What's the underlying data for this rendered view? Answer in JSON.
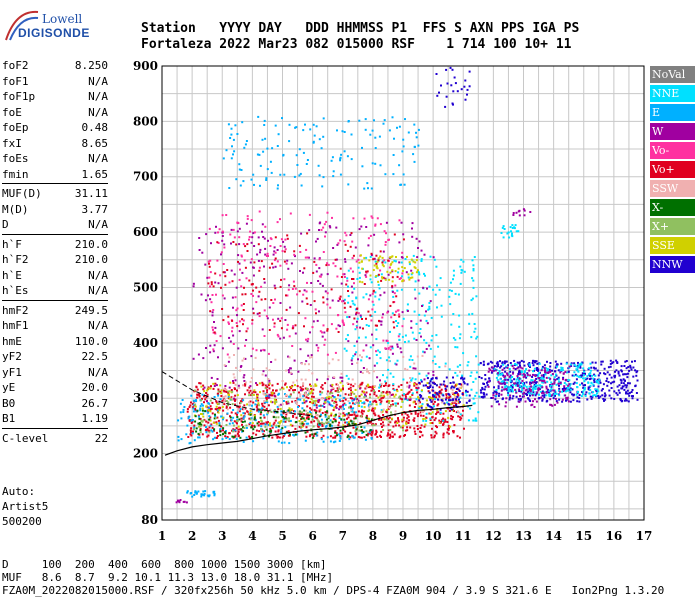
{
  "logo": {
    "line1": "Lowell",
    "line2": "DIGISONDE"
  },
  "header": {
    "line1": "Station   YYYY DAY   DDD HHMMSS P1  FFS S AXN PPS IGA PS",
    "line2": "Fortaleza 2022 Mar23 082 015000 RSF    1 714 100 10+ 11"
  },
  "params": {
    "group1": [
      {
        "label": "foF2",
        "value": "8.250"
      },
      {
        "label": "foF1",
        "value": "N/A"
      },
      {
        "label": "foF1p",
        "value": "N/A"
      },
      {
        "label": "foE",
        "value": "N/A"
      },
      {
        "label": "foEp",
        "value": "0.48"
      },
      {
        "label": "fxI",
        "value": "8.65"
      },
      {
        "label": "foEs",
        "value": "N/A"
      },
      {
        "label": "fmin",
        "value": "1.65"
      }
    ],
    "group2": [
      {
        "label": "MUF(D)",
        "value": "31.11"
      },
      {
        "label": "M(D)",
        "value": "3.77"
      },
      {
        "label": "D",
        "value": "N/A"
      }
    ],
    "group3": [
      {
        "label": "h`F",
        "value": "210.0"
      },
      {
        "label": "h`F2",
        "value": "210.0"
      },
      {
        "label": "h`E",
        "value": "N/A"
      },
      {
        "label": "h`Es",
        "value": "N/A"
      }
    ],
    "group4": [
      {
        "label": "hmF2",
        "value": "249.5"
      },
      {
        "label": "hmF1",
        "value": "N/A"
      },
      {
        "label": "hmE",
        "value": "110.0"
      },
      {
        "label": "yF2",
        "value": "22.5"
      },
      {
        "label": "yF1",
        "value": "N/A"
      },
      {
        "label": "yE",
        "value": "20.0"
      },
      {
        "label": "B0",
        "value": "26.7"
      },
      {
        "label": "B1",
        "value": "1.19"
      }
    ],
    "group5": [
      {
        "label": "C-level",
        "value": "22"
      }
    ]
  },
  "auto": {
    "line1": "Auto:",
    "line2": "Artist5",
    "line3": "500200"
  },
  "bottom": {
    "line1": "D     100  200  400  600  800 1000 1500 3000 [km]",
    "line2": "MUF   8.6  8.7  9.2 10.1 11.3 13.0 18.0 31.1 [MHz]",
    "line3": "FZA0M_2022082015000.RSF / 320fx256h 50 kHz 5.0 km / DPS-4 FZA0M 904 / 3.9 S 321.6 E   Ion2Png 1.3.20"
  },
  "legend": [
    {
      "label": "NoVal",
      "color": "#808080"
    },
    {
      "label": "NNE",
      "color": "#00e0ff"
    },
    {
      "label": "E",
      "color": "#00b0ff"
    },
    {
      "label": "W",
      "color": "#a000a0"
    },
    {
      "label": "Vo-",
      "color": "#ff30a0"
    },
    {
      "label": "Vo+",
      "color": "#e00020"
    },
    {
      "label": "SSW",
      "color": "#f0b0b0"
    },
    {
      "label": "X-",
      "color": "#007000"
    },
    {
      "label": "X+",
      "color": "#90c060"
    },
    {
      "label": "SSE",
      "color": "#d0d000"
    },
    {
      "label": "NNW",
      "color": "#2000d0"
    }
  ],
  "chart_data": {
    "type": "scatter",
    "xlim": [
      1,
      17
    ],
    "ylim": [
      80,
      900
    ],
    "x_ticks": [
      1,
      2,
      3,
      4,
      5,
      6,
      7,
      8,
      9,
      10,
      11,
      12,
      13,
      14,
      15,
      16,
      17
    ],
    "y_ticks": [
      80,
      200,
      300,
      400,
      500,
      600,
      700,
      800,
      900
    ],
    "grid": true,
    "legend_placement": "right",
    "trace": [
      [
        1.1,
        197
      ],
      [
        1.5,
        205
      ],
      [
        2,
        212
      ],
      [
        2.5,
        216
      ],
      [
        3,
        219
      ],
      [
        3.5,
        222
      ],
      [
        4,
        227
      ],
      [
        4.5,
        232
      ],
      [
        5,
        236
      ],
      [
        5.5,
        240
      ],
      [
        6,
        243
      ],
      [
        6.5,
        245
      ],
      [
        7,
        248
      ],
      [
        7.5,
        252
      ],
      [
        8,
        260
      ],
      [
        8.5,
        268
      ],
      [
        9,
        274
      ],
      [
        9.5,
        278
      ],
      [
        10,
        280
      ],
      [
        10.5,
        283
      ],
      [
        11,
        285
      ],
      [
        11.3,
        287
      ]
    ],
    "trace_dashed": [
      [
        1,
        348
      ],
      [
        2,
        315
      ],
      [
        3,
        292
      ],
      [
        4,
        280
      ],
      [
        5,
        275
      ],
      [
        6,
        268
      ]
    ],
    "clusters": [
      {
        "color": "#e00020",
        "x": [
          1.8,
          11
        ],
        "y": [
          230,
          330
        ],
        "n": 900
      },
      {
        "color": "#00b0ff",
        "x": [
          1.5,
          8
        ],
        "y": [
          220,
          310
        ],
        "n": 250
      },
      {
        "color": "#00e0ff",
        "x": [
          7,
          11.5
        ],
        "y": [
          260,
          560
        ],
        "n": 300
      },
      {
        "color": "#a000a0",
        "x": [
          2,
          10
        ],
        "y": [
          280,
          620
        ],
        "n": 350
      },
      {
        "color": "#ff30a0",
        "x": [
          2.5,
          9
        ],
        "y": [
          380,
          640
        ],
        "n": 250
      },
      {
        "color": "#e00020",
        "x": [
          2.5,
          9
        ],
        "y": [
          420,
          600
        ],
        "n": 150
      },
      {
        "color": "#d0d000",
        "x": [
          2,
          11
        ],
        "y": [
          250,
          330
        ],
        "n": 200
      },
      {
        "color": "#d0d000",
        "x": [
          7.5,
          9.5
        ],
        "y": [
          510,
          560
        ],
        "n": 60
      },
      {
        "color": "#007000",
        "x": [
          2,
          8
        ],
        "y": [
          230,
          280
        ],
        "n": 120
      },
      {
        "color": "#90c060",
        "x": [
          2,
          9
        ],
        "y": [
          240,
          320
        ],
        "n": 120
      },
      {
        "color": "#f0b0b0",
        "x": [
          3,
          11
        ],
        "y": [
          270,
          380
        ],
        "n": 150
      },
      {
        "color": "#2000d0",
        "x": [
          11.5,
          16.8
        ],
        "y": [
          295,
          370
        ],
        "n": 500
      },
      {
        "color": "#00e0ff",
        "x": [
          12,
          15.5
        ],
        "y": [
          305,
          365
        ],
        "n": 250
      },
      {
        "color": "#a000a0",
        "x": [
          11.8,
          14.5
        ],
        "y": [
          285,
          360
        ],
        "n": 150
      },
      {
        "color": "#2000d0",
        "x": [
          9.5,
          11.2
        ],
        "y": [
          280,
          340
        ],
        "n": 100
      },
      {
        "color": "#00b0ff",
        "x": [
          3,
          9.5
        ],
        "y": [
          680,
          810
        ],
        "n": 150
      },
      {
        "color": "#2000d0",
        "x": [
          10,
          11.2
        ],
        "y": [
          820,
          900
        ],
        "n": 25
      },
      {
        "color": "#00b0ff",
        "x": [
          1.8,
          2.8
        ],
        "y": [
          124,
          134
        ],
        "n": 30
      },
      {
        "color": "#a000a0",
        "x": [
          1.4,
          1.8
        ],
        "y": [
          113,
          118
        ],
        "n": 10
      },
      {
        "color": "#00e0ff",
        "x": [
          12.2,
          12.8
        ],
        "y": [
          590,
          615
        ],
        "n": 20
      },
      {
        "color": "#a000a0",
        "x": [
          12.6,
          13.2
        ],
        "y": [
          630,
          645
        ],
        "n": 10
      }
    ]
  }
}
